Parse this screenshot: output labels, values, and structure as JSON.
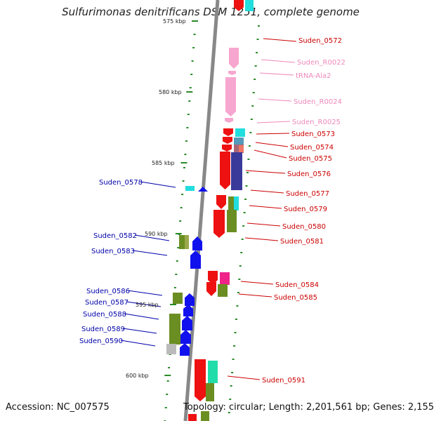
{
  "title": "Sulfurimonas denitrificans DSM 1251, complete genome",
  "footer": {
    "accession": "Accession: NC_007575",
    "summary": "Topology: circular; Length: 2,201,561 bp; Genes: 2,155"
  },
  "colors": {
    "backbone": "#888888",
    "tick": "#2a8a2a",
    "forward_label": "#cc0000",
    "rna_label": "#ee88bb",
    "reverse_label": "#0000aa",
    "red_gene": "#ee1111",
    "pink_rna": "#f7a6cf",
    "blue_gene": "#1111ee",
    "olive_domain": "#6b8e23",
    "cyan_domain": "#22dddd",
    "navy_domain": "#3a3a9a",
    "magenta_domain": "#ee2288",
    "teal_domain": "#22ddaa",
    "gray_domain": "#bbbbbb"
  },
  "scale_marks": [
    {
      "label": "575 kbp"
    },
    {
      "label": "580 kbp"
    },
    {
      "label": "585 kbp"
    },
    {
      "label": "590 kbp"
    },
    {
      "label": "595 kbp"
    },
    {
      "label": "600 kbp"
    }
  ],
  "forward_genes": [
    {
      "name": "Suden_0572",
      "type": "CDS"
    },
    {
      "name": "Suden_R0022",
      "type": "RNA"
    },
    {
      "name": "tRNA-Ala2",
      "type": "RNA"
    },
    {
      "name": "Suden_R0024",
      "type": "RNA"
    },
    {
      "name": "Suden_R0025",
      "type": "RNA"
    },
    {
      "name": "Suden_0573",
      "type": "CDS"
    },
    {
      "name": "Suden_0574",
      "type": "CDS"
    },
    {
      "name": "Suden_0575",
      "type": "CDS"
    },
    {
      "name": "Suden_0576",
      "type": "CDS"
    },
    {
      "name": "Suden_0577",
      "type": "CDS"
    },
    {
      "name": "Suden_0579",
      "type": "CDS"
    },
    {
      "name": "Suden_0580",
      "type": "CDS"
    },
    {
      "name": "Suden_0581",
      "type": "CDS"
    },
    {
      "name": "Suden_0584",
      "type": "CDS"
    },
    {
      "name": "Suden_0585",
      "type": "CDS"
    },
    {
      "name": "Suden_0591",
      "type": "CDS"
    }
  ],
  "reverse_genes": [
    {
      "name": "Suden_0578"
    },
    {
      "name": "Suden_0582"
    },
    {
      "name": "Suden_0583"
    },
    {
      "name": "Suden_0586"
    },
    {
      "name": "Suden_0587"
    },
    {
      "name": "Suden_0588"
    },
    {
      "name": "Suden_0589"
    },
    {
      "name": "Suden_0590"
    }
  ]
}
